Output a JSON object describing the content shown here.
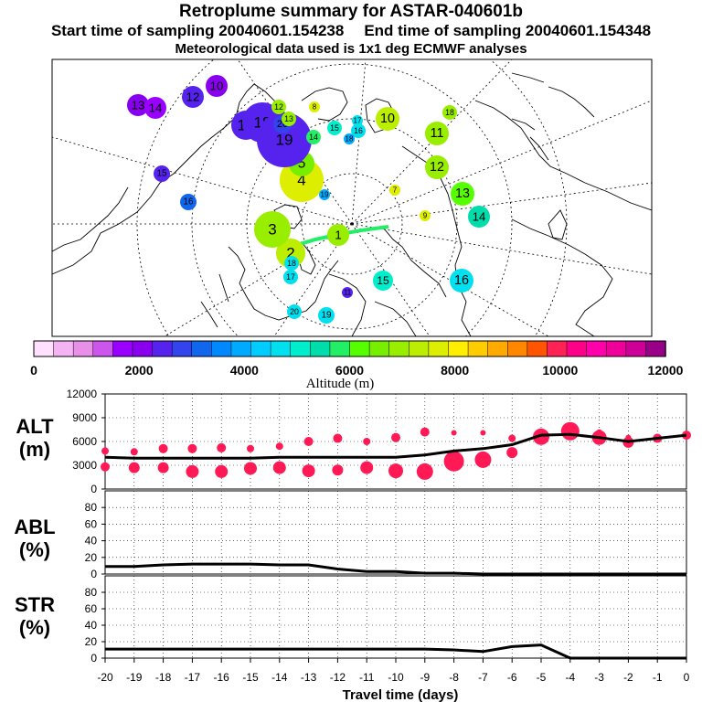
{
  "chart_data": [
    {
      "type": "scatter",
      "name": "trajectory-map",
      "title": "Retroplume summary for ASTAR-040601b",
      "subtitle_start": "Start time of sampling 20040601.154238",
      "subtitle_end": "End time of sampling 20040601.154348",
      "subtitle_met": "Meteorological data used is 1x1 deg ECMWF analyses",
      "color_scale": {
        "label": "Altitude (m)",
        "tick_labels": [
          "0",
          "2000",
          "4000",
          "6000",
          "8000",
          "10000",
          "12000"
        ],
        "tick_values": [
          0,
          2000,
          4000,
          6000,
          8000,
          10000,
          12000
        ],
        "max": 12000,
        "colors": [
          "#ffe0ff",
          "#f4b4f4",
          "#e890e8",
          "#cc55ee",
          "#9900ff",
          "#8800ee",
          "#5522ee",
          "#3344ee",
          "#1166ee",
          "#0088ff",
          "#00aaff",
          "#00ccff",
          "#00e0ee",
          "#00eecc",
          "#00ddaa",
          "#22ee66",
          "#55ff00",
          "#77ee00",
          "#99ee00",
          "#bbee00",
          "#ddee00",
          "#ffee00",
          "#ffcc00",
          "#ffaa00",
          "#ff8800",
          "#ff5500",
          "#ff2255",
          "#ff0088",
          "#ff00aa",
          "#ee0099",
          "#cc0099",
          "#990088"
        ]
      },
      "points": [
        {
          "label": "1",
          "alt": 7000
        },
        {
          "label": "2",
          "alt": 7200
        },
        {
          "label": "3",
          "alt": 6800
        },
        {
          "label": "4",
          "alt": 7500
        },
        {
          "label": "5",
          "alt": 6500
        },
        {
          "label": "6",
          "alt": 5800
        },
        {
          "label": "7",
          "alt": 7800
        },
        {
          "label": "8",
          "alt": 7800
        },
        {
          "label": "9",
          "alt": 7600
        },
        {
          "label": "10",
          "alt": 7200
        },
        {
          "label": "11",
          "alt": 6800
        },
        {
          "label": "12",
          "alt": 6800
        },
        {
          "label": "13",
          "alt": 6200
        },
        {
          "label": "14",
          "alt": 5600
        },
        {
          "label": "15",
          "alt": 5100
        },
        {
          "label": "16",
          "alt": 4800
        },
        {
          "label": "17",
          "alt": 4700
        },
        {
          "label": "18",
          "alt": 4800
        },
        {
          "label": "19",
          "alt": 4600
        },
        {
          "label": "20",
          "alt": 4800
        },
        {
          "label": "10",
          "alt": 2200
        },
        {
          "label": "12",
          "alt": 2500
        },
        {
          "label": "13",
          "alt": 2000
        },
        {
          "label": "14",
          "alt": 1600
        },
        {
          "label": "15",
          "alt": 2400
        },
        {
          "label": "16",
          "alt": 3200
        },
        {
          "label": "17",
          "alt": 2300
        },
        {
          "label": "18",
          "alt": 2400
        },
        {
          "label": "19",
          "alt": 2600
        },
        {
          "label": "20",
          "alt": 2700
        },
        {
          "label": "11",
          "alt": 2500
        },
        {
          "label": "18",
          "alt": 6800
        },
        {
          "label": "12",
          "alt": 7000
        },
        {
          "label": "13",
          "alt": 6800
        },
        {
          "label": "14",
          "alt": 5800
        },
        {
          "label": "15",
          "alt": 4900
        },
        {
          "label": "16",
          "alt": 4800
        },
        {
          "label": "17",
          "alt": 4500
        },
        {
          "label": "18",
          "alt": 4000
        },
        {
          "label": "19",
          "alt": 3900
        }
      ]
    },
    {
      "type": "scatter",
      "name": "altitude-panel",
      "ylabel": "ALT (m)",
      "ylim": [
        0,
        12000
      ],
      "y_ticks": [
        "0",
        "3000",
        "6000",
        "9000",
        "12000"
      ],
      "xlim": [
        -20,
        0
      ],
      "x": [
        -20,
        -19,
        -18,
        -17,
        -16,
        -15,
        -14,
        -13,
        -12,
        -11,
        -10,
        -9,
        -8,
        -7,
        -6,
        -5,
        -4,
        -3,
        -2,
        -1,
        0
      ],
      "median_line": [
        4000,
        3900,
        3900,
        3900,
        3900,
        3900,
        4000,
        4000,
        4000,
        4000,
        4000,
        4300,
        4800,
        5100,
        5600,
        6800,
        6900,
        6500,
        6000,
        6400,
        6800
      ],
      "lower_cluster": [
        2800,
        2700,
        2700,
        2200,
        2200,
        2600,
        2700,
        2300,
        2400,
        2700,
        2300,
        2200,
        3500,
        3700,
        4600,
        6600,
        7300,
        6500,
        5900,
        6400,
        6800
      ],
      "upper_cluster": [
        4800,
        4700,
        5100,
        5100,
        5200,
        5100,
        5400,
        6000,
        6400,
        6000,
        6500,
        7200,
        7100,
        7100,
        6400,
        6900,
        7600,
        7200,
        6500,
        6600,
        6800
      ]
    },
    {
      "type": "line",
      "name": "abl-panel",
      "ylabel": "ABL (%)",
      "ylim": [
        0,
        100
      ],
      "y_ticks": [
        "0",
        "20",
        "40",
        "60",
        "80"
      ],
      "xlim": [
        -20,
        0
      ],
      "x": [
        -20,
        -19,
        -18,
        -17,
        -16,
        -15,
        -14,
        -13,
        -12,
        -11,
        -10,
        -9,
        -8,
        -7,
        -6,
        -5,
        -4,
        -3,
        -2,
        -1,
        0
      ],
      "values": [
        9,
        9,
        11,
        12,
        12,
        12,
        11,
        11,
        6,
        3,
        3,
        1,
        1,
        0,
        0,
        0,
        0,
        0,
        0,
        0,
        0
      ]
    },
    {
      "type": "line",
      "name": "str-panel",
      "ylabel": "STR (%)",
      "ylim": [
        0,
        100
      ],
      "y_ticks": [
        "0",
        "20",
        "40",
        "60",
        "80"
      ],
      "xlim": [
        -20,
        0
      ],
      "x": [
        -20,
        -19,
        -18,
        -17,
        -16,
        -15,
        -14,
        -13,
        -12,
        -11,
        -10,
        -9,
        -8,
        -7,
        -6,
        -5,
        -4,
        -3,
        -2,
        -1,
        0
      ],
      "values": [
        11,
        11,
        11,
        11,
        11,
        11,
        11,
        11,
        11,
        11,
        11,
        11,
        10,
        8,
        14,
        16,
        0,
        0,
        0,
        0,
        0
      ],
      "xlabel": "Travel time (days)",
      "x_tick_labels": [
        "-20",
        "-19",
        "-18",
        "-17",
        "-16",
        "-15",
        "-14",
        "-13",
        "-12",
        "-11",
        "-10",
        "-9",
        "-8",
        "-7",
        "-6",
        "-5",
        "-4",
        "-3",
        "-2",
        "-1",
        "0"
      ]
    }
  ],
  "labels": {
    "alt_panel_label_line1": "ALT",
    "alt_panel_label_line2": "(m)",
    "abl_panel_label_line1": "ABL",
    "abl_panel_label_line2": "(%)",
    "str_panel_label_line1": "STR",
    "str_panel_label_line2": "(%)"
  },
  "colors": {
    "alt_marker": "#ff1a55",
    "line": "#000000"
  }
}
